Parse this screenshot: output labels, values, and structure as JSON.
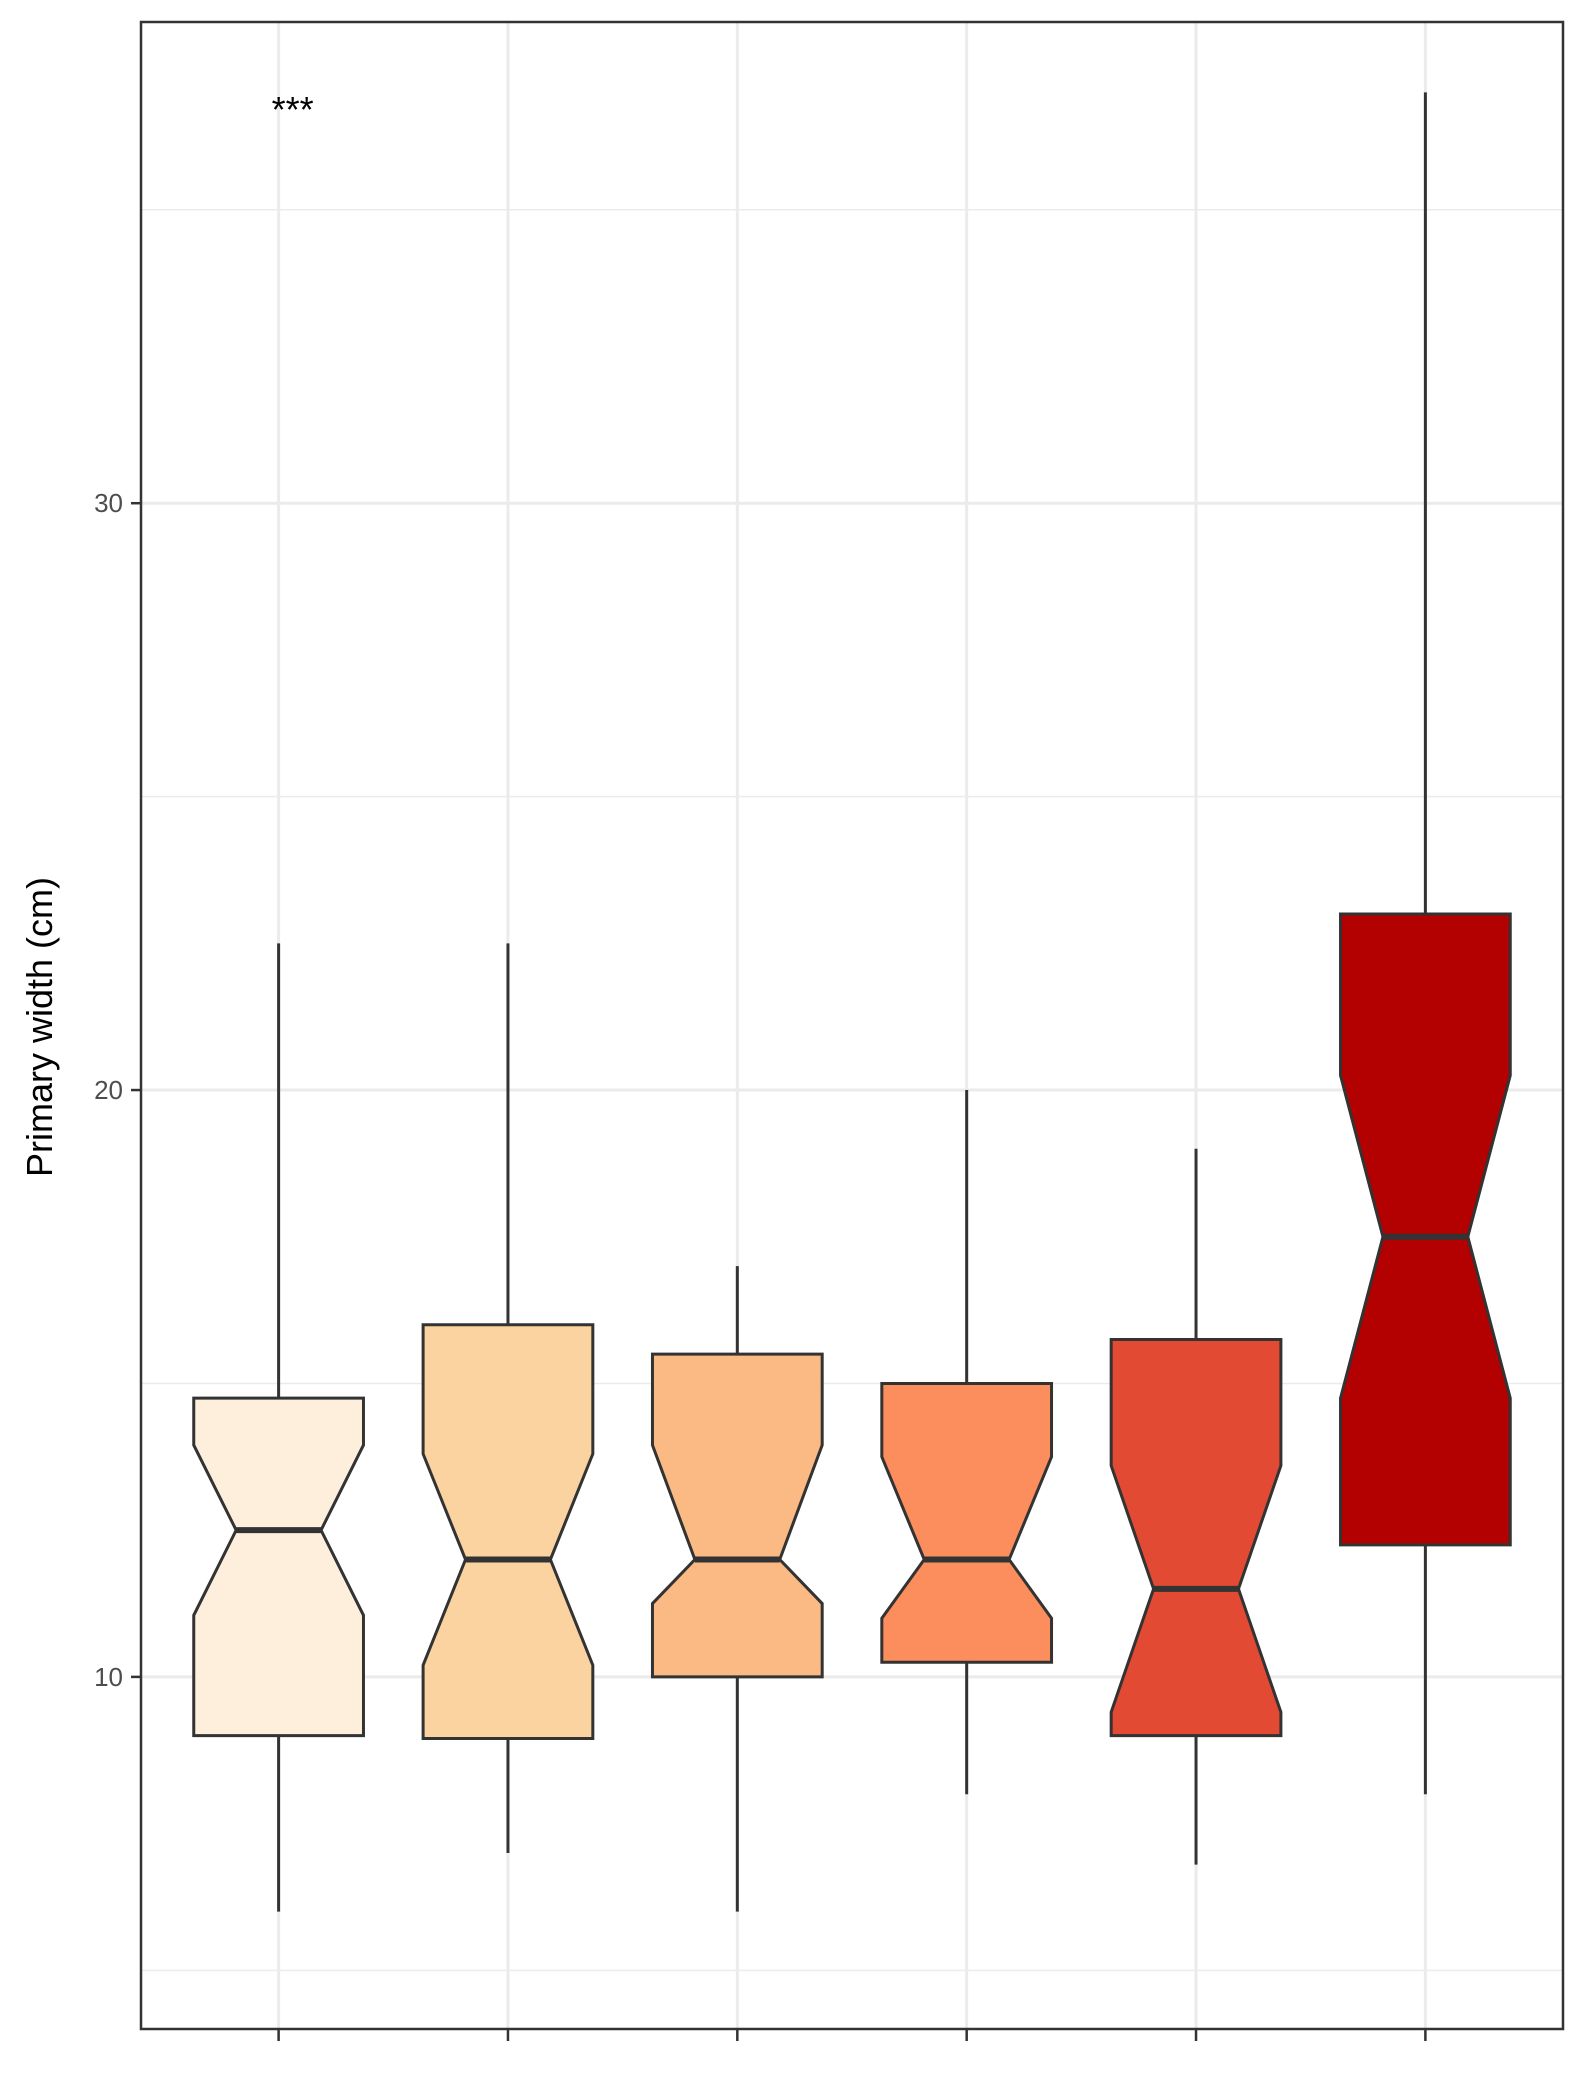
{
  "chart_data": {
    "type": "boxplot",
    "notched": true,
    "title": "",
    "xlabel": "",
    "ylabel": "Primary width (cm)",
    "ylim": [
      4.0,
      38.2
    ],
    "yticks": [
      10,
      20,
      30
    ],
    "ytick_labels": [
      "10",
      "20",
      "30"
    ],
    "grid": true,
    "x_tick_labels": [],
    "annotation": {
      "text": "***",
      "group": 1
    },
    "boxes": [
      {
        "fill": "#FEEFDD",
        "whisker_low": 6.0,
        "q1": 9.0,
        "median": 12.5,
        "q3": 14.75,
        "notch_low": 11.05,
        "notch_high": 13.95
      },
      {
        "fill": "#FBD3A0",
        "whisker_low": 7.0,
        "q1": 8.95,
        "median": 12.0,
        "q3": 16.0,
        "notch_low": 10.2,
        "notch_high": 13.8
      },
      {
        "fill": "#FBBA84",
        "whisker_low": 6.0,
        "q1": 10.0,
        "median": 12.0,
        "q3": 15.5,
        "notch_low": 11.25,
        "notch_high": 13.95,
        "whisker_high": 17.0
      },
      {
        "fill": "#FC8D5C",
        "whisker_low": 8.0,
        "q1": 10.25,
        "median": 12.0,
        "q3": 15.0,
        "notch_low": 11.0,
        "notch_high": 13.75,
        "whisker_high": 20.0
      },
      {
        "fill": "#E34A33",
        "whisker_low": 6.8,
        "q1": 9.0,
        "median": 11.5,
        "q3": 15.75,
        "notch_low": 9.4,
        "notch_high": 13.6,
        "whisker_high": 19.0
      },
      {
        "fill": "#B30000",
        "whisker_low": 8.0,
        "q1": 12.25,
        "median": 17.5,
        "q3": 23.0,
        "notch_low": 14.75,
        "notch_high": 20.25,
        "whisker_high": 37.0
      }
    ]
  }
}
